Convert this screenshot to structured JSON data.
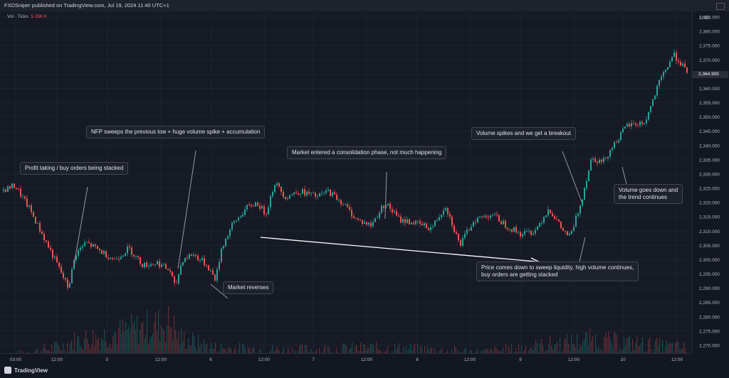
{
  "header": {
    "publisher_line": "FXDSniper published on TradingView.com, Jul 19, 2024 11:40 UTC+1"
  },
  "indicator": {
    "name": "Vol · Ticks",
    "value": "5.356 K"
  },
  "footer": {
    "brand": "TradingView"
  },
  "annotations": [
    {
      "id": "profit",
      "text": "Profit taking / buy orders being stacked"
    },
    {
      "id": "nfp",
      "text": "NFP sweeps the previous low + huge volume spike + accumulation"
    },
    {
      "id": "consolidation",
      "text": "Market entered a consolidation phase, not much happening"
    },
    {
      "id": "breakout",
      "text": "Volume spikes and we get a breakout"
    },
    {
      "id": "volume-down",
      "line1": "Volume goes down and",
      "line2": "the trend continues"
    },
    {
      "id": "reverses",
      "text": "Market reverses"
    },
    {
      "id": "sweep",
      "line1": "Price comes down to sweep liquidity, high volume continues,",
      "line2": "buy orders are getting stacked"
    }
  ],
  "colors": {
    "up": "#26a69a",
    "down": "#ef5350",
    "background": "#161a25"
  },
  "chart_data": {
    "type": "candlestick",
    "currency": "USD",
    "last_price": "2,364.905",
    "y_ticks": [
      "2,385.000",
      "2,380.000",
      "2,375.000",
      "2,370.000",
      "2,365.000",
      "2,360.000",
      "2,355.000",
      "2,350.000",
      "2,345.000",
      "2,340.000",
      "2,335.000",
      "2,330.000",
      "2,325.000",
      "2,320.000",
      "2,315.000",
      "2,310.000",
      "2,305.000",
      "2,300.000",
      "2,295.000",
      "2,290.000",
      "2,285.000",
      "2,280.000",
      "2,275.000",
      "2,270.000"
    ],
    "ylim": [
      2268,
      2386
    ],
    "x_ticks": [
      "03:00",
      "12:00",
      "3",
      "12:00",
      "6",
      "12:00",
      "7",
      "12:00",
      "8",
      "12:00",
      "9",
      "12:00",
      "10",
      "12:00"
    ],
    "price_path": [
      [
        0,
        2324
      ],
      [
        20,
        2326
      ],
      [
        40,
        2318
      ],
      [
        60,
        2308
      ],
      [
        80,
        2298
      ],
      [
        95,
        2290
      ],
      [
        105,
        2302
      ],
      [
        120,
        2306
      ],
      [
        140,
        2303
      ],
      [
        160,
        2300
      ],
      [
        180,
        2304
      ],
      [
        200,
        2298
      ],
      [
        220,
        2299
      ],
      [
        238,
        2296
      ],
      [
        245,
        2290
      ],
      [
        255,
        2300
      ],
      [
        270,
        2302
      ],
      [
        290,
        2298
      ],
      [
        302,
        2293
      ],
      [
        310,
        2304
      ],
      [
        325,
        2312
      ],
      [
        345,
        2318
      ],
      [
        360,
        2320
      ],
      [
        372,
        2316
      ],
      [
        385,
        2327
      ],
      [
        400,
        2322
      ],
      [
        420,
        2324
      ],
      [
        445,
        2322
      ],
      [
        460,
        2324
      ],
      [
        480,
        2320
      ],
      [
        500,
        2314
      ],
      [
        520,
        2312
      ],
      [
        540,
        2320
      ],
      [
        560,
        2314
      ],
      [
        580,
        2313
      ],
      [
        605,
        2311
      ],
      [
        625,
        2319
      ],
      [
        645,
        2305
      ],
      [
        665,
        2314
      ],
      [
        690,
        2316
      ],
      [
        710,
        2312
      ],
      [
        730,
        2309
      ],
      [
        750,
        2310
      ],
      [
        770,
        2318
      ],
      [
        790,
        2310
      ],
      [
        800,
        2308
      ],
      [
        815,
        2320
      ],
      [
        830,
        2336
      ],
      [
        845,
        2334
      ],
      [
        860,
        2340
      ],
      [
        880,
        2347
      ],
      [
        905,
        2348
      ],
      [
        925,
        2362
      ],
      [
        945,
        2372
      ],
      [
        958,
        2368
      ],
      [
        965,
        2364
      ]
    ],
    "volume_profile": [
      [
        0,
        0.1
      ],
      [
        90,
        0.35
      ],
      [
        100,
        0.45
      ],
      [
        240,
        0.9
      ],
      [
        250,
        0.55
      ],
      [
        300,
        0.3
      ],
      [
        400,
        0.25
      ],
      [
        540,
        0.3
      ],
      [
        680,
        0.2
      ],
      [
        810,
        0.45
      ],
      [
        825,
        0.5
      ],
      [
        960,
        0.3
      ]
    ]
  }
}
